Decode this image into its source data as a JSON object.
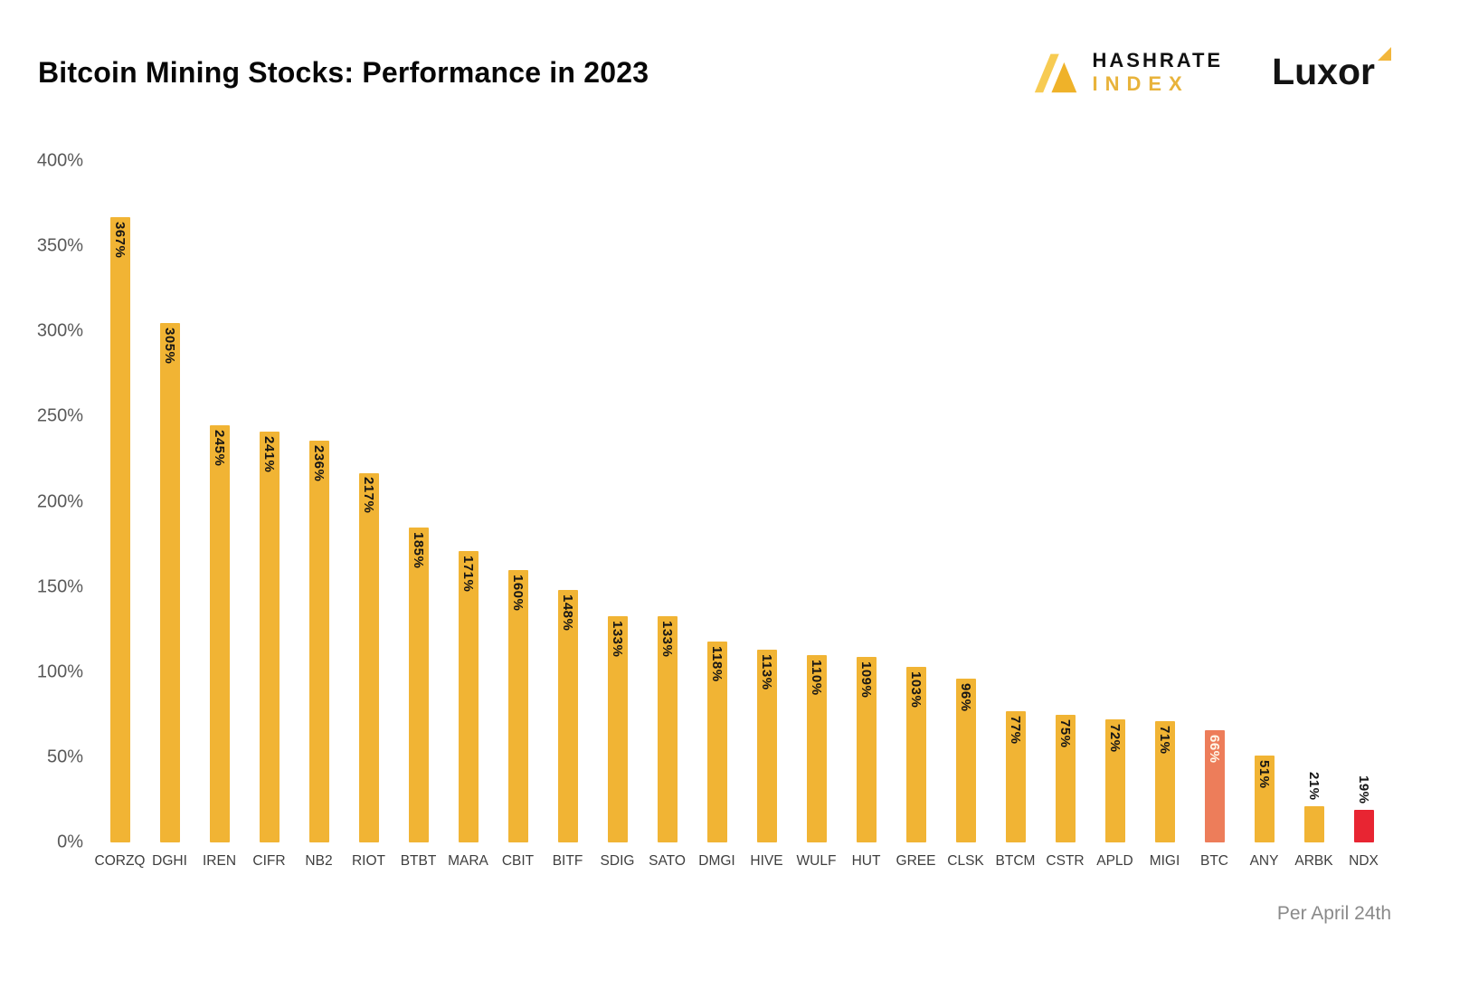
{
  "header": {
    "title": "Bitcoin Mining Stocks: Performance in 2023",
    "hashrate_index": {
      "line1": "HASHRATE",
      "line2": "INDEX"
    },
    "luxor": "Luxor"
  },
  "footer": {
    "note": "Per April 24th"
  },
  "colors": {
    "bar_default": "#F1B434",
    "bar_btc": "#ED7D5A",
    "bar_ndx": "#E82532",
    "brand_yellow": "#E8B33B",
    "axis_text": "#595959",
    "value_label": "#151515",
    "value_label_light": "#FFF8EA"
  },
  "chart_data": {
    "type": "bar",
    "title": "Bitcoin Mining Stocks: Performance in 2023",
    "categories": [
      "CORZQ",
      "DGHI",
      "IREN",
      "CIFR",
      "NB2",
      "RIOT",
      "BTBT",
      "MARA",
      "CBIT",
      "BITF",
      "SDIG",
      "SATO",
      "DMGI",
      "HIVE",
      "WULF",
      "HUT",
      "GREE",
      "CLSK",
      "BTCM",
      "CSTR",
      "APLD",
      "MIGI",
      "BTC",
      "ANY",
      "ARBK",
      "NDX"
    ],
    "values": [
      367,
      305,
      245,
      241,
      236,
      217,
      185,
      171,
      160,
      148,
      133,
      133,
      118,
      113,
      110,
      109,
      103,
      96,
      77,
      75,
      72,
      71,
      66,
      51,
      21,
      19
    ],
    "label_suffix": "%",
    "xlabel": "",
    "ylabel": "",
    "ylim": [
      0,
      400
    ],
    "ytick_values": [
      0,
      50,
      100,
      150,
      200,
      250,
      300,
      350,
      400
    ],
    "ytick_labels": [
      "0%",
      "50%",
      "100%",
      "150%",
      "200%",
      "250%",
      "300%",
      "350%",
      "400%"
    ],
    "grid": false,
    "legend": false,
    "bar_colors": {
      "default": "#F1B434",
      "BTC": "#ED7D5A",
      "NDX": "#E82532"
    },
    "light_label_categories": [
      "BTC"
    ],
    "inside_label_min": 40,
    "annotation": "Per April 24th"
  }
}
